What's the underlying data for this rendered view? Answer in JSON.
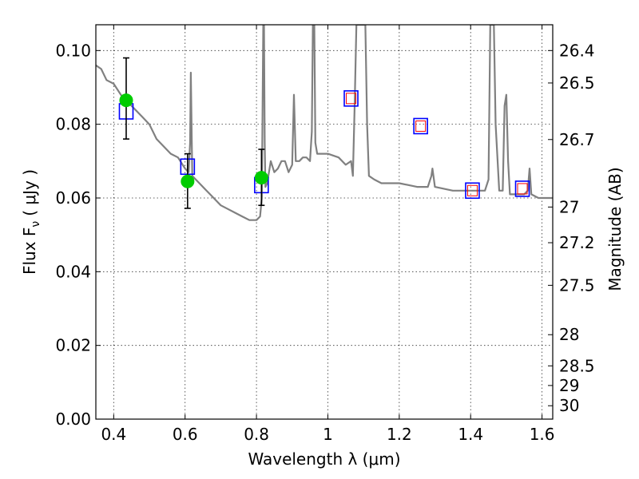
{
  "chart_data": {
    "type": "scatter",
    "title": "",
    "xlabel": "Wavelength  λ (μm)",
    "ylabel": "Flux  F",
    "ylabel_sub": "ν",
    "ylabel_unit": "( μJy )",
    "y2label": "Magnitude (AB)",
    "xlim": [
      0.35,
      1.63
    ],
    "ylim": [
      0.0,
      0.107
    ],
    "grid": true,
    "x_ticks": [
      {
        "value": 0.4,
        "label": "0.4"
      },
      {
        "value": 0.6,
        "label": "0.6"
      },
      {
        "value": 0.8,
        "label": "0.8"
      },
      {
        "value": 1.0,
        "label": "1"
      },
      {
        "value": 1.2,
        "label": "1.2"
      },
      {
        "value": 1.4,
        "label": "1.4"
      },
      {
        "value": 1.6,
        "label": "1.6"
      }
    ],
    "y_ticks": [
      {
        "value": 0.0,
        "label": "0.00"
      },
      {
        "value": 0.02,
        "label": "0.02"
      },
      {
        "value": 0.04,
        "label": "0.04"
      },
      {
        "value": 0.06,
        "label": "0.06"
      },
      {
        "value": 0.08,
        "label": "0.08"
      },
      {
        "value": 0.1,
        "label": "0.10"
      }
    ],
    "y2_ticks": [
      {
        "mag": 26.4,
        "label": "26.4"
      },
      {
        "mag": 26.5,
        "label": "26.5"
      },
      {
        "mag": 26.7,
        "label": "26.7"
      },
      {
        "mag": 27.0,
        "label": "27"
      },
      {
        "mag": 27.2,
        "label": "27.2"
      },
      {
        "mag": 27.5,
        "label": "27.5"
      },
      {
        "mag": 28.0,
        "label": "28"
      },
      {
        "mag": 28.5,
        "label": "28.5"
      },
      {
        "mag": 29.0,
        "label": "29"
      },
      {
        "mag": 30.0,
        "label": "30"
      }
    ],
    "model_spectrum": {
      "color": "#808080",
      "x": [
        0.35,
        0.365,
        0.38,
        0.4,
        0.42,
        0.44,
        0.46,
        0.48,
        0.5,
        0.52,
        0.54,
        0.56,
        0.58,
        0.6,
        0.61,
        0.614,
        0.616,
        0.62,
        0.64,
        0.66,
        0.68,
        0.7,
        0.72,
        0.74,
        0.76,
        0.78,
        0.8,
        0.81,
        0.815,
        0.819,
        0.82,
        0.821,
        0.823,
        0.825,
        0.83,
        0.84,
        0.85,
        0.86,
        0.87,
        0.88,
        0.89,
        0.9,
        0.905,
        0.91,
        0.92,
        0.93,
        0.94,
        0.95,
        0.955,
        0.958,
        0.96,
        0.962,
        0.965,
        0.97,
        1.0,
        1.03,
        1.05,
        1.065,
        1.07,
        1.075,
        1.08,
        1.1,
        1.105,
        1.11,
        1.115,
        1.13,
        1.15,
        1.2,
        1.25,
        1.28,
        1.29,
        1.293,
        1.3,
        1.35,
        1.4,
        1.44,
        1.45,
        1.455,
        1.46,
        1.465,
        1.47,
        1.48,
        1.49,
        1.495,
        1.5,
        1.505,
        1.51,
        1.55,
        1.56,
        1.565,
        1.57,
        1.59,
        1.6,
        1.63
      ],
      "y": [
        0.096,
        0.095,
        0.092,
        0.091,
        0.088,
        0.086,
        0.084,
        0.082,
        0.08,
        0.076,
        0.074,
        0.072,
        0.071,
        0.068,
        0.067,
        0.075,
        0.094,
        0.066,
        0.064,
        0.062,
        0.06,
        0.058,
        0.057,
        0.056,
        0.055,
        0.054,
        0.054,
        0.055,
        0.06,
        0.107,
        0.107,
        0.107,
        0.075,
        0.063,
        0.064,
        0.07,
        0.067,
        0.068,
        0.07,
        0.07,
        0.067,
        0.069,
        0.088,
        0.07,
        0.07,
        0.071,
        0.071,
        0.07,
        0.078,
        0.107,
        0.107,
        0.107,
        0.075,
        0.072,
        0.072,
        0.071,
        0.069,
        0.07,
        0.066,
        0.085,
        0.107,
        0.107,
        0.107,
        0.08,
        0.066,
        0.065,
        0.064,
        0.064,
        0.063,
        0.063,
        0.066,
        0.068,
        0.063,
        0.062,
        0.062,
        0.062,
        0.065,
        0.107,
        0.107,
        0.107,
        0.08,
        0.062,
        0.062,
        0.085,
        0.088,
        0.07,
        0.061,
        0.061,
        0.062,
        0.068,
        0.061,
        0.06,
        0.06,
        0.06
      ]
    },
    "series": [
      {
        "name": "",
        "marker": "open-square",
        "color": "#0000ff",
        "x": [
          0.435,
          0.607,
          0.814,
          1.065,
          1.26,
          1.405,
          1.545
        ],
        "y": [
          0.0835,
          0.0685,
          0.0635,
          0.087,
          0.0795,
          0.062,
          0.0625
        ]
      },
      {
        "name": "",
        "marker": "small-open-square",
        "color": "#ff0000",
        "x": [
          1.065,
          1.26,
          1.405,
          1.545
        ],
        "y": [
          0.087,
          0.0795,
          0.062,
          0.0625
        ]
      },
      {
        "name": "",
        "marker": "filled-circle",
        "color": "#00cc00",
        "x": [
          0.435,
          0.607,
          0.814
        ],
        "y": [
          0.0865,
          0.0645,
          0.0655
        ],
        "yerr_low": [
          0.076,
          0.0572,
          0.058
        ],
        "yerr_high": [
          0.098,
          0.072,
          0.0732
        ]
      }
    ]
  }
}
